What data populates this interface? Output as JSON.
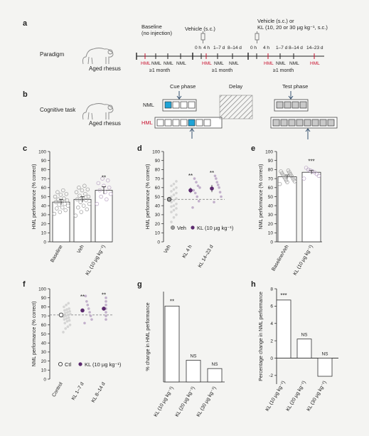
{
  "panel_letters": {
    "a": "a",
    "b": "b",
    "c": "c",
    "d": "d",
    "e": "e",
    "f": "f",
    "g": "g",
    "h": "h"
  },
  "panel_a": {
    "row_label": "Paradigm",
    "monkey_caption": "Aged rhesus",
    "baseline_title_1": "Baseline",
    "baseline_title_2": "(no injection)",
    "vehicle_title": "Vehicle (s.c.)",
    "klvehicle_title_1": "Vehicle (s.c.) or",
    "klvehicle_title_2": "KL (10, 20 or 30 µg kg⁻¹, s.c.)",
    "hml": "HML",
    "nml": "NML",
    "month": "≥1 month",
    "t0h": "0 h",
    "t4h": "4 h",
    "t17d": "1–7 d",
    "t814d": "8–14 d",
    "t1423d": "14–23 d"
  },
  "panel_b": {
    "row_label": "Cognitive task",
    "monkey_caption": "Aged rhesus",
    "cue_phase": "Cue phase",
    "delay": "Delay",
    "test_phase": "Test phase",
    "nml": "NML",
    "hml": "HML"
  },
  "colors": {
    "accent": "#c8102e",
    "purple": "#5b2a6e",
    "light_purple": "#b9a3c4",
    "cyan": "#1fa3d6",
    "grey_dot": "#9a9a9a"
  },
  "chart_data": [
    {
      "id": "c",
      "type": "bar",
      "categories": [
        "Baseline",
        "Veh",
        "KL (10 µg kg⁻¹)"
      ],
      "values": [
        44,
        47,
        57
      ],
      "errors": [
        3,
        3,
        4
      ],
      "ylabel": "HML performance (% correct)",
      "ylim": [
        0,
        100
      ],
      "yticks": [
        0,
        10,
        20,
        30,
        40,
        50,
        60,
        70,
        80,
        90,
        100
      ],
      "significance": [
        "",
        "",
        "**"
      ],
      "points": [
        [
          31,
          33,
          35,
          37,
          38,
          40,
          41,
          42,
          44,
          45,
          46,
          47,
          48,
          50,
          52,
          53,
          55,
          57
        ],
        [
          29,
          33,
          36,
          38,
          40,
          42,
          44,
          46,
          47,
          48,
          50,
          51,
          53,
          55,
          57,
          58,
          60,
          62
        ],
        [
          42,
          47,
          50,
          53,
          55,
          57,
          60,
          62,
          65,
          68,
          70
        ]
      ]
    },
    {
      "id": "d",
      "type": "scatter",
      "categories": [
        "Veh",
        "KL 4 h",
        "KL 14–23 d"
      ],
      "ylabel": "HML performance (% correct)",
      "ylim": [
        0,
        100
      ],
      "yticks": [
        0,
        10,
        20,
        30,
        40,
        50,
        60,
        70,
        80,
        90,
        100
      ],
      "reference_line": 47,
      "significance": [
        "",
        "**",
        "**"
      ],
      "series": [
        {
          "name": "Veh",
          "means": [
            47
          ],
          "errors": [
            2
          ]
        },
        {
          "name": "KL (10 µg kg⁻¹)",
          "means": [
            57,
            59
          ],
          "errors": [
            3,
            4
          ]
        }
      ],
      "points": [
        [
          22,
          27,
          30,
          33,
          35,
          37,
          39,
          40,
          42,
          44,
          46,
          48,
          50,
          52,
          54,
          56,
          58,
          60,
          62,
          64,
          67
        ],
        [
          38,
          45,
          50,
          54,
          57,
          60,
          62,
          66,
          70
        ],
        [
          44,
          50,
          55,
          60,
          63,
          66,
          70,
          73
        ]
      ]
    },
    {
      "id": "e",
      "type": "bar",
      "categories": [
        "Baseline/Veh",
        "KL (10 µg kg⁻¹)"
      ],
      "values": [
        72,
        77
      ],
      "errors": [
        2,
        2
      ],
      "ylabel": "NML performance (% correct)",
      "ylim": [
        0,
        100
      ],
      "yticks": [
        0,
        10,
        20,
        30,
        40,
        50,
        60,
        70,
        80,
        90,
        100
      ],
      "significance": [
        "",
        "***"
      ],
      "points": [
        [
          64,
          66,
          67,
          68,
          69,
          70,
          71,
          72,
          73,
          74,
          75,
          76,
          77,
          78,
          79
        ],
        [
          70,
          73,
          75,
          77,
          78,
          79,
          80,
          82
        ]
      ]
    },
    {
      "id": "f",
      "type": "scatter",
      "categories": [
        "Control",
        "KL 1–7 d",
        "KL 8–14 d"
      ],
      "ylabel": "NML performance (% correct)",
      "ylim": [
        0,
        100
      ],
      "yticks": [
        0,
        10,
        20,
        30,
        40,
        50,
        60,
        70,
        80,
        90,
        100
      ],
      "reference_line": 71,
      "significance": [
        "",
        "**",
        "**"
      ],
      "series": [
        {
          "name": "Ctl",
          "means": [
            71
          ],
          "errors": [
            1
          ]
        },
        {
          "name": "KL (10 µg kg⁻¹)",
          "means": [
            76,
            78
          ],
          "errors": [
            2,
            2
          ]
        }
      ],
      "points": [
        [
          52,
          56,
          58,
          60,
          62,
          64,
          65,
          66,
          67,
          68,
          69,
          70,
          71,
          72,
          73,
          74,
          75,
          76,
          77,
          78,
          80,
          82,
          84
        ],
        [
          62,
          66,
          70,
          74,
          78,
          82,
          86,
          92
        ],
        [
          66,
          70,
          74,
          78,
          82,
          86,
          90
        ]
      ]
    },
    {
      "id": "g",
      "type": "bar",
      "categories": [
        "KL (10 µg kg⁻¹)",
        "KL (20 µg kg⁻¹)",
        "KL (30 µg kg⁻¹)"
      ],
      "values": [
        21,
        6,
        3.7
      ],
      "ylabel": "% change in HML performance",
      "ylim": [
        0,
        25
      ],
      "yticks": [],
      "significance": [
        "**",
        "NS",
        "NS"
      ]
    },
    {
      "id": "h",
      "type": "bar",
      "categories": [
        "KL (10 µg kg⁻¹)",
        "KL (20 µg kg⁻¹)",
        "KL (30 µg kg⁻¹)"
      ],
      "values": [
        6.7,
        2.2,
        -2.1
      ],
      "ylabel": "Percentage change in NML performance",
      "ylim": [
        -3,
        8
      ],
      "yticks": [
        -2,
        0,
        2,
        4,
        6,
        8
      ],
      "significance": [
        "***",
        "NS",
        "NS"
      ]
    }
  ],
  "legends": {
    "d": {
      "veh": "Veh",
      "kl": "KL (10 µg kg⁻¹)"
    },
    "f": {
      "ctl": "Ctl",
      "kl": "KL (10 µg kg⁻¹)"
    }
  }
}
